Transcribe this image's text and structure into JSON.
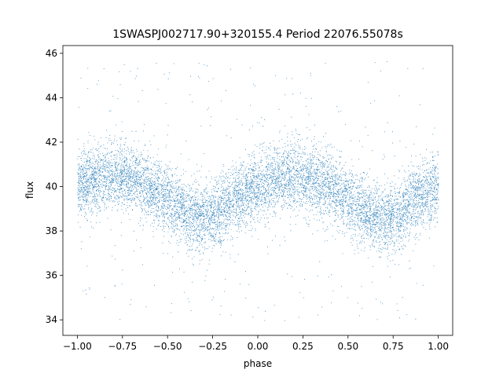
{
  "chart_data": {
    "type": "scatter",
    "title": "1SWASPJ002717.90+320155.4 Period 22076.55078s",
    "xlabel": "phase",
    "ylabel": "flux",
    "xlim": [
      -1.08,
      1.08
    ],
    "ylim": [
      33.3,
      46.35
    ],
    "xticks": [
      -1.0,
      -0.75,
      -0.5,
      -0.25,
      0.0,
      0.25,
      0.5,
      0.75,
      1.0
    ],
    "xtick_labels": [
      "−1.00",
      "−0.75",
      "−0.50",
      "−0.25",
      "0.00",
      "0.25",
      "0.50",
      "0.75",
      "1.00"
    ],
    "yticks": [
      34,
      36,
      38,
      40,
      42,
      44,
      46
    ],
    "ytick_labels": [
      "34",
      "36",
      "38",
      "40",
      "42",
      "44",
      "46"
    ],
    "grid": false,
    "legend": "none",
    "marker_color": "#1f77b4",
    "series": [
      {
        "phase_range": [
          -1.0,
          1.0
        ],
        "trend": {
          "x": [
            -1.0,
            -0.9,
            -0.8,
            -0.7,
            -0.6,
            -0.5,
            -0.4,
            -0.3,
            -0.2,
            -0.1,
            0.0,
            0.1,
            0.2,
            0.3,
            0.4,
            0.5,
            0.6,
            0.7,
            0.8,
            0.9,
            1.0
          ],
          "y": [
            40.1,
            40.3,
            40.5,
            40.4,
            40.0,
            39.4,
            38.8,
            38.5,
            38.9,
            39.6,
            40.0,
            40.3,
            40.5,
            40.4,
            40.0,
            39.4,
            38.8,
            38.5,
            38.9,
            39.6,
            40.0
          ]
        },
        "scatter_sigma": 0.75,
        "outlier_range": [
          33.9,
          45.7
        ]
      }
    ]
  }
}
